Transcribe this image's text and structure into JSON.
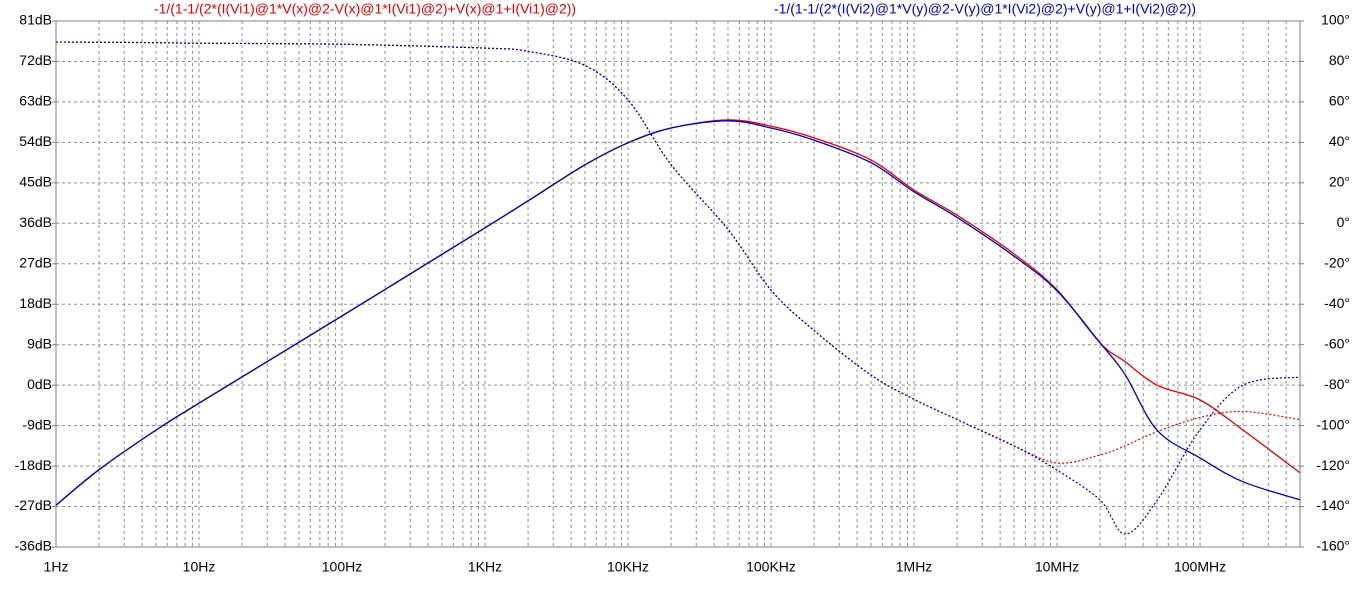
{
  "chart_data": {
    "type": "line",
    "log_x": true,
    "grid": true,
    "x": [
      1,
      2,
      5,
      10,
      100,
      1000,
      2000,
      5000,
      10000,
      20000,
      50000,
      100000,
      200000,
      500000,
      1000000,
      2000000,
      5000000,
      10000000,
      20000000,
      30000000,
      50000000,
      100000000,
      200000000,
      500000000
    ],
    "xlim": [
      1,
      500000000
    ],
    "xticks": [
      {
        "value": 1,
        "label": "1Hz"
      },
      {
        "value": 10,
        "label": "10Hz"
      },
      {
        "value": 100,
        "label": "100Hz"
      },
      {
        "value": 1000,
        "label": "1KHz"
      },
      {
        "value": 10000,
        "label": "10KHz"
      },
      {
        "value": 100000,
        "label": "100KHz"
      },
      {
        "value": 1000000,
        "label": "1MHz"
      },
      {
        "value": 10000000,
        "label": "10MHz"
      },
      {
        "value": 100000000,
        "label": "100MHz"
      }
    ],
    "ylim": [
      -36,
      81
    ],
    "yticks": [
      {
        "value": 81,
        "label": "81dB"
      },
      {
        "value": 72,
        "label": "72dB"
      },
      {
        "value": 63,
        "label": "63dB"
      },
      {
        "value": 54,
        "label": "54dB"
      },
      {
        "value": 45,
        "label": "45dB"
      },
      {
        "value": 36,
        "label": "36dB"
      },
      {
        "value": 27,
        "label": "27dB"
      },
      {
        "value": 18,
        "label": "18dB"
      },
      {
        "value": 9,
        "label": "9dB"
      },
      {
        "value": 0,
        "label": "0dB"
      },
      {
        "value": -9,
        "label": "-9dB"
      },
      {
        "value": -18,
        "label": "-18dB"
      },
      {
        "value": -27,
        "label": "-27dB"
      },
      {
        "value": -36,
        "label": "-36dB"
      }
    ],
    "y2lim": [
      -160,
      100
    ],
    "y2ticks": [
      {
        "value": 100,
        "label": "100°"
      },
      {
        "value": 80,
        "label": "80°"
      },
      {
        "value": 60,
        "label": "60°"
      },
      {
        "value": 40,
        "label": "40°"
      },
      {
        "value": 20,
        "label": "20°"
      },
      {
        "value": 0,
        "label": "0°"
      },
      {
        "value": -20,
        "label": "-20°"
      },
      {
        "value": -40,
        "label": "-40°"
      },
      {
        "value": -60,
        "label": "-60°"
      },
      {
        "value": -80,
        "label": "-80°"
      },
      {
        "value": -100,
        "label": "-100°"
      },
      {
        "value": -120,
        "label": "-120°"
      },
      {
        "value": -140,
        "label": "-140°"
      },
      {
        "value": -160,
        "label": "-160°"
      }
    ],
    "series": [
      {
        "name": "-1/(1-1/(2*(I(Vi1)@1*V(x)@2-V(x)@1*I(Vi1)@2)+V(x)@1+I(Vi1)@2))",
        "color": "#e00000",
        "values": [
          -26.7,
          -18.8,
          -10,
          -4,
          15.4,
          35,
          41,
          49,
          53.9,
          57.2,
          59,
          57.6,
          55,
          50.1,
          43.4,
          37.8,
          29.2,
          21.2,
          9.4,
          5.2,
          0,
          -3.3,
          -10,
          -19.5
        ],
        "phase": [
          89.6,
          89.5,
          89.3,
          89,
          88.5,
          86.6,
          85,
          78,
          61,
          29,
          -3,
          -33,
          -53,
          -75,
          -87,
          -97,
          -110,
          -118.5,
          -114.5,
          -110,
          -103,
          -96,
          -93,
          -97
        ]
      },
      {
        "name": "-1/(1-1/(2*(I(Vi2)@1*V(y)@2-V(y)@1*I(Vi2)@2)+V(y)@1+I(Vi2)@2))",
        "color": "#0000c0",
        "values": [
          -26.7,
          -18.8,
          -10,
          -4,
          15.4,
          35,
          41,
          49,
          53.9,
          57.2,
          58.8,
          57.2,
          54.5,
          49.5,
          43,
          37.3,
          28.7,
          21,
          9.4,
          2.3,
          -10,
          -16.2,
          -21.5,
          -25.5
        ],
        "phase": [
          89.6,
          89.5,
          89.3,
          89,
          88.5,
          86.6,
          85,
          78,
          61,
          29,
          -3,
          -33,
          -53,
          -75,
          -87,
          -97,
          -110,
          -122,
          -136.8,
          -153.6,
          -137,
          -102,
          -80,
          -76
        ]
      }
    ]
  }
}
